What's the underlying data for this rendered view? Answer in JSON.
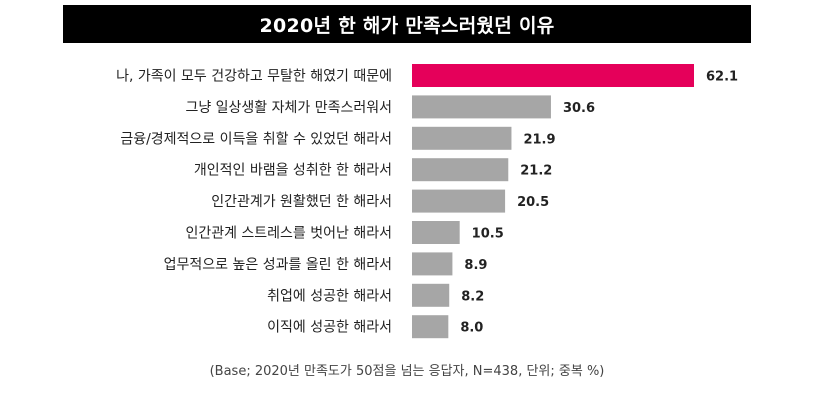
{
  "title": "2020년 한 해가 만족스러웠던 이유",
  "footnote": "(Base; 2020년 만족도가 50점을 넘는 응답자, N=438, 단위; 중복 %)",
  "colors": {
    "highlight": "#e5005a",
    "bar": "#a6a6a6",
    "title_bg": "#000000"
  },
  "chart_data": {
    "type": "bar",
    "orientation": "horizontal",
    "categories": [
      "나, 가족이 모두 건강하고 무탈한 해였기 때문에",
      "그냥 일상생활 자체가 만족스러워서",
      "금융/경제적으로 이득을 취할 수 있었던 해라서",
      "개인적인 바램을 성취한 한 해라서",
      "인간관계가 원활했던 한 해라서",
      "인간관계 스트레스를 벗어난 해라서",
      "업무적으로 높은 성과를 올린 한 해라서",
      "취업에 성공한 해라서",
      "이직에 성공한 해라서"
    ],
    "values": [
      62.1,
      30.6,
      21.9,
      21.2,
      20.5,
      10.5,
      8.9,
      8.2,
      8.0
    ],
    "value_labels": [
      "62.1",
      "30.6",
      "21.9",
      "21.2",
      "20.5",
      "10.5",
      "8.9",
      "8.2",
      "8.0"
    ],
    "highlight_index": 0,
    "xlim": [
      0,
      62.1
    ],
    "grid": false,
    "legend": "none"
  }
}
